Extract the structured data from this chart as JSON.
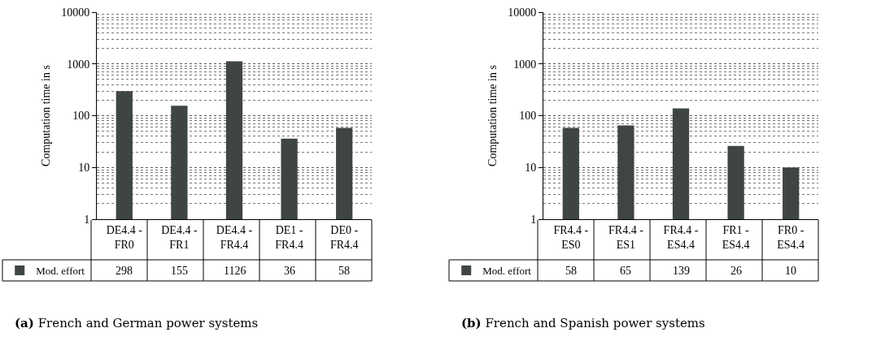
{
  "chart_data": [
    {
      "type": "bar",
      "title": "(a) French and German power systems",
      "ylabel": "Computation time in s",
      "categories": [
        "DE4.4 - FR0",
        "DE4.4 - FR1",
        "DE4.4 - FR4.4",
        "DE1 - FR4.4",
        "DE0 - FR4.4"
      ],
      "series": [
        {
          "name": "Mod. effort",
          "color": "#3f4542",
          "values": [
            298,
            155,
            1126,
            36,
            58
          ]
        }
      ],
      "log": true,
      "ylim": [
        1,
        10000
      ],
      "yticks": [
        1,
        10,
        100,
        1000,
        10000
      ],
      "grid": "y",
      "legend": "bottom",
      "data_labels": true
    },
    {
      "type": "bar",
      "title": "(b) French and Spanish power systems",
      "ylabel": "Computation time in s",
      "categories": [
        "FR4.4 - ES0",
        "FR4.4 - ES1",
        "FR4.4 - ES4.4",
        "FR1 - ES4.4",
        "FR0 - ES4.4"
      ],
      "series": [
        {
          "name": "Mod. effort",
          "color": "#3f4542",
          "values": [
            58,
            65,
            139,
            26,
            10
          ]
        }
      ],
      "log": true,
      "ylim": [
        1,
        10000
      ],
      "yticks": [
        1,
        10,
        100,
        1000,
        10000
      ],
      "grid": "y",
      "legend": "bottom",
      "data_labels": true
    }
  ]
}
